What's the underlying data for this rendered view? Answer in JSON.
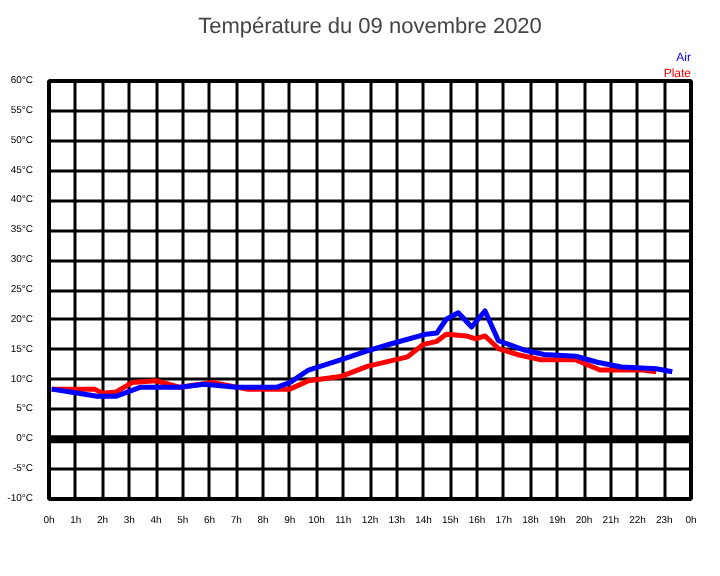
{
  "chart_data": {
    "type": "line",
    "title": "Température du 09 novembre 2020",
    "x": [
      "2020-11-09T00:06",
      "2020-11-09T01:06",
      "2020-11-09T01:48",
      "2020-11-09T02:30",
      "2020-11-09T03:24",
      "2020-11-09T04:54",
      "2020-11-09T05:48",
      "2020-11-09T07:00",
      "2020-11-09T08:30",
      "2020-11-09T09:00",
      "2020-11-09T09:42",
      "2020-11-09T10:54",
      "2020-11-09T11:54",
      "2020-11-09T12:48",
      "2020-11-09T14:06",
      "2020-11-09T14:30",
      "2020-11-09T14:51",
      "2020-11-09T15:18",
      "2020-11-09T15:48",
      "2020-11-09T16:18",
      "2020-11-09T16:48",
      "2020-11-09T17:48",
      "2020-11-09T18:30",
      "2020-11-09T19:42",
      "2020-11-09T20:30",
      "2020-11-09T21:24",
      "2020-11-09T22:42",
      "2020-11-09T23:18"
    ],
    "series": [
      {
        "name": "Plate",
        "color": "#ff0000",
        "x": [
          "2020-11-09T00:06",
          "2020-11-09T01:42",
          "2020-11-09T02:00",
          "2020-11-09T02:30",
          "2020-11-09T03:06",
          "2020-11-09T04:00",
          "2020-11-09T04:54",
          "2020-11-09T06:06",
          "2020-11-09T07:24",
          "2020-11-09T09:00",
          "2020-11-09T09:42",
          "2020-11-09T10:54",
          "2020-11-09T11:54",
          "2020-11-09T13:24",
          "2020-11-09T14:00",
          "2020-11-09T14:30",
          "2020-11-09T14:51",
          "2020-11-09T15:36",
          "2020-11-09T15:57",
          "2020-11-09T16:18",
          "2020-11-09T16:48",
          "2020-11-09T17:30",
          "2020-11-09T18:24",
          "2020-11-09T19:42",
          "2020-11-09T20:36",
          "2020-11-09T21:24",
          "2020-11-09T22:12",
          "2020-11-09T22:42"
        ],
        "values": [
          8.4,
          8.4,
          7.7,
          7.9,
          9.5,
          9.8,
          8.7,
          9.5,
          8.4,
          8.4,
          9.8,
          10.5,
          12.2,
          13.8,
          15.9,
          16.4,
          17.6,
          17.3,
          16.8,
          17.3,
          15.2,
          14.2,
          13.3,
          13.3,
          11.6,
          11.6,
          11.6,
          11.3
        ]
      },
      {
        "name": "Air",
        "color": "#0000ff",
        "values": [
          8.4,
          7.7,
          7.2,
          7.2,
          8.7,
          8.7,
          9.2,
          8.7,
          8.7,
          9.5,
          11.6,
          13.3,
          14.8,
          16.0,
          17.6,
          17.8,
          20.1,
          21.2,
          18.8,
          21.5,
          16.5,
          14.9,
          14.2,
          13.9,
          12.9,
          12.1,
          11.8,
          11.3
        ]
      }
    ],
    "xlim": [
      "2020-11-09T00:00",
      "2020-11-10T00:00"
    ],
    "ylim": [
      -10,
      60
    ],
    "xticks": [
      {
        "value": "2020-11-09T00:00",
        "label": "0h"
      },
      {
        "value": "2020-11-09T01:00",
        "label": "1h"
      },
      {
        "value": "2020-11-09T02:00",
        "label": "2h"
      },
      {
        "value": "2020-11-09T03:00",
        "label": "3h"
      },
      {
        "value": "2020-11-09T04:00",
        "label": "4h"
      },
      {
        "value": "2020-11-09T05:00",
        "label": "5h"
      },
      {
        "value": "2020-11-09T06:00",
        "label": "6h"
      },
      {
        "value": "2020-11-09T07:00",
        "label": "7h"
      },
      {
        "value": "2020-11-09T08:00",
        "label": "8h"
      },
      {
        "value": "2020-11-09T09:00",
        "label": "9h"
      },
      {
        "value": "2020-11-09T10:00",
        "label": "10h"
      },
      {
        "value": "2020-11-09T11:00",
        "label": "11h"
      },
      {
        "value": "2020-11-09T12:00",
        "label": "12h"
      },
      {
        "value": "2020-11-09T13:00",
        "label": "13h"
      },
      {
        "value": "2020-11-09T14:00",
        "label": "14h"
      },
      {
        "value": "2020-11-09T15:00",
        "label": "15h"
      },
      {
        "value": "2020-11-09T16:00",
        "label": "16h"
      },
      {
        "value": "2020-11-09T17:00",
        "label": "17h"
      },
      {
        "value": "2020-11-09T18:00",
        "label": "18h"
      },
      {
        "value": "2020-11-09T19:00",
        "label": "19h"
      },
      {
        "value": "2020-11-09T20:00",
        "label": "20h"
      },
      {
        "value": "2020-11-09T21:00",
        "label": "21h"
      },
      {
        "value": "2020-11-09T22:00",
        "label": "22h"
      },
      {
        "value": "2020-11-09T23:00",
        "label": "23h"
      },
      {
        "value": "2020-11-10T00:00",
        "label": "0h"
      }
    ],
    "yticks": [
      {
        "value": -10,
        "label": "-10°C"
      },
      {
        "value": -5,
        "label": "-5°C"
      },
      {
        "value": 0,
        "label": "0°C"
      },
      {
        "value": 5,
        "label": "5°C"
      },
      {
        "value": 10,
        "label": "10°C"
      },
      {
        "value": 15,
        "label": "15°C"
      },
      {
        "value": 20,
        "label": "20°C"
      },
      {
        "value": 25,
        "label": "25°C"
      },
      {
        "value": 30,
        "label": "30°C"
      },
      {
        "value": 35,
        "label": "35°C"
      },
      {
        "value": 40,
        "label": "40°C"
      },
      {
        "value": 45,
        "label": "45°C"
      },
      {
        "value": 50,
        "label": "50°C"
      },
      {
        "value": 55,
        "label": "55°C"
      },
      {
        "value": 60,
        "label": "60°C"
      }
    ],
    "ref_lines": [
      {
        "axis": "y",
        "value": 0,
        "color": "#000000"
      }
    ],
    "grid": true,
    "marker": "none",
    "line_style": "solid"
  }
}
